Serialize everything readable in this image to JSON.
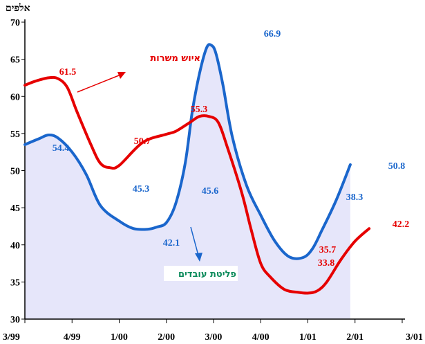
{
  "chart_data": {
    "type": "area",
    "unit_label": "אלפים",
    "categories": [
      "3/99",
      "4/99",
      "1/00",
      "2/00",
      "3/00",
      "4/00",
      "1/01",
      "2/01",
      "3/01"
    ],
    "ylim": [
      30,
      70
    ],
    "y_ticks": [
      30,
      35,
      40,
      45,
      50,
      55,
      60,
      65,
      70
    ],
    "grid": false,
    "series": [
      {
        "name": "פליטת עובדים",
        "color": "#1a66cc",
        "fill": "#e6e6fa",
        "x": [
          0,
          0.3,
          0.5,
          0.7,
          1.0,
          1.3,
          1.6,
          2.0,
          2.3,
          2.6,
          2.8,
          3.0,
          3.2,
          3.4,
          3.55,
          3.7,
          3.85,
          3.95,
          4.05,
          4.2,
          4.4,
          4.7,
          5.0,
          5.3,
          5.6,
          5.9,
          6.1,
          6.3,
          6.6,
          6.9,
          7.2,
          7.5,
          7.8,
          8.0
        ],
        "values": [
          53.5,
          54.3,
          54.8,
          54.4,
          52.5,
          49.5,
          45.3,
          43.2,
          42.2,
          42.1,
          42.4,
          43.0,
          45.6,
          51.0,
          58.0,
          63.0,
          66.5,
          66.9,
          65.8,
          61.5,
          54.5,
          48.0,
          44.0,
          40.5,
          38.4,
          38.3,
          39.5,
          42.0,
          46.0,
          50.8,
          null,
          null,
          null,
          null
        ]
      },
      {
        "name": "איוש משרות",
        "color": "#e60000",
        "x": [
          0,
          0.2,
          0.5,
          0.7,
          0.9,
          1.1,
          1.4,
          1.6,
          1.8,
          2.0,
          2.5,
          3.0,
          3.2,
          3.5,
          3.7,
          3.9,
          4.1,
          4.3,
          4.6,
          4.8,
          5.0,
          5.2,
          5.5,
          5.8,
          6.0,
          6.2,
          6.4,
          6.7,
          7.0,
          7.3,
          7.6,
          8.0
        ],
        "values": [
          61.5,
          62.0,
          62.5,
          62.4,
          61.2,
          58.0,
          53.5,
          51.0,
          50.4,
          50.7,
          53.8,
          54.9,
          55.3,
          56.5,
          57.3,
          57.3,
          56.5,
          53.0,
          47.0,
          42.0,
          37.5,
          35.7,
          34.0,
          33.6,
          33.5,
          33.8,
          35.0,
          38.0,
          40.5,
          42.2,
          null,
          null
        ]
      }
    ],
    "data_labels": [
      {
        "series": 0,
        "value": "54.4"
      },
      {
        "series": 0,
        "value": "45.3"
      },
      {
        "series": 0,
        "value": "42.1"
      },
      {
        "series": 0,
        "value": "45.6"
      },
      {
        "series": 0,
        "value": "66.9"
      },
      {
        "series": 0,
        "value": "38.3"
      },
      {
        "series": 0,
        "value": "50.8"
      },
      {
        "series": 1,
        "value": "61.5"
      },
      {
        "series": 1,
        "value": "50.7"
      },
      {
        "series": 1,
        "value": "55.3"
      },
      {
        "series": 1,
        "value": "35.7"
      },
      {
        "series": 1,
        "value": "33.8"
      },
      {
        "series": 1,
        "value": "42.2"
      }
    ],
    "annotations": [
      {
        "series": 1,
        "text": "איוש משרות"
      },
      {
        "series": 0,
        "text": "פליטת עובדים"
      }
    ]
  }
}
